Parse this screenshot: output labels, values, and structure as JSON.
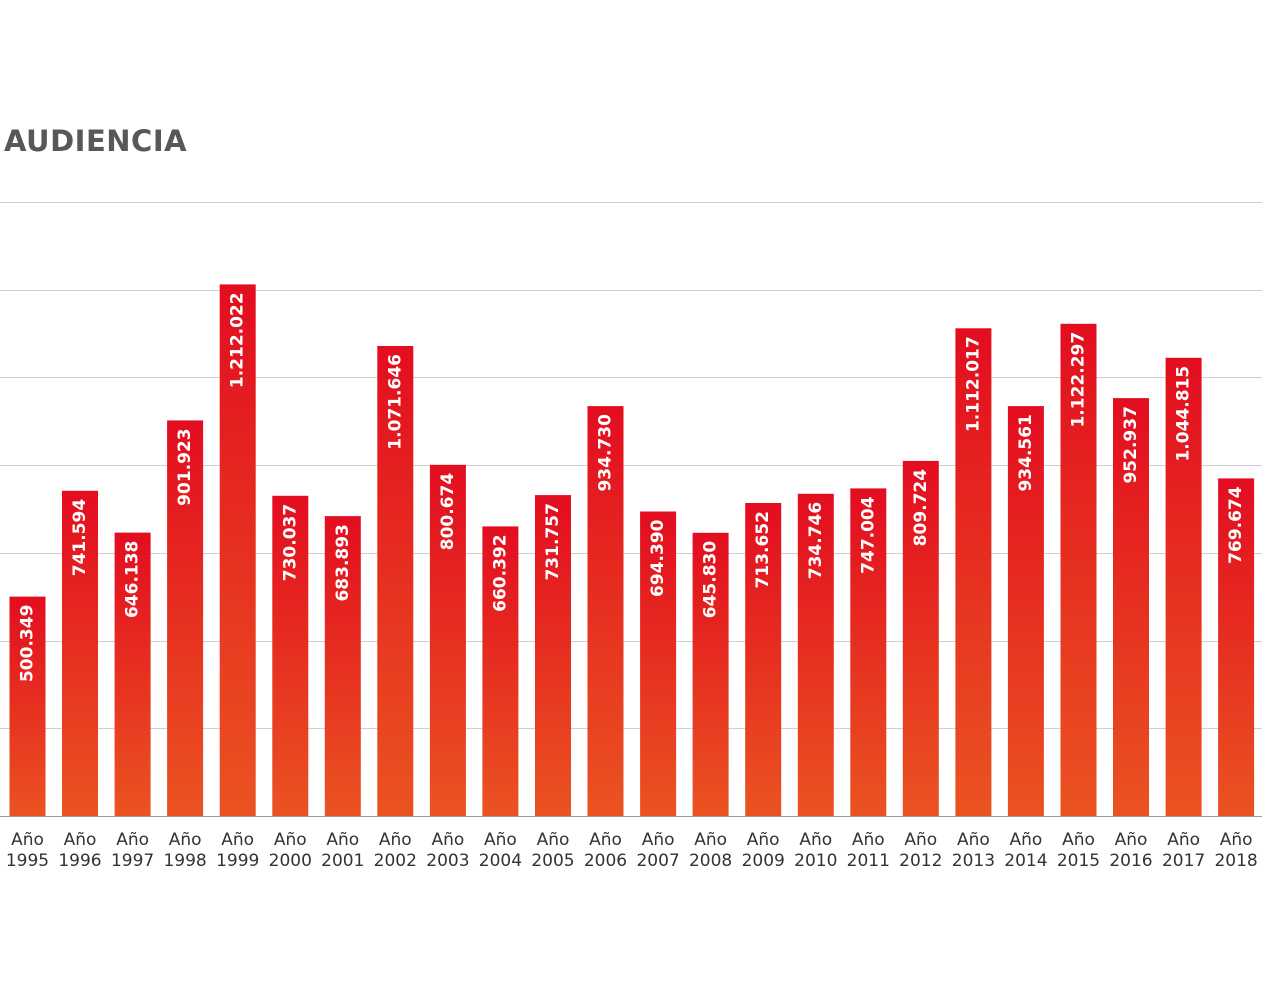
{
  "chart_data": {
    "type": "bar",
    "title": "AUDIENCIA",
    "xlabel": "",
    "ylabel": "",
    "grid": true,
    "ylim": [
      0,
      1400000
    ],
    "yticks": [
      0,
      200000,
      400000,
      600000,
      800000,
      1000000,
      1200000,
      1400000
    ],
    "categories": [
      [
        "Año",
        "1995"
      ],
      [
        "Año",
        "1996"
      ],
      [
        "Año",
        "1997"
      ],
      [
        "Año",
        "1998"
      ],
      [
        "Año",
        "1999"
      ],
      [
        "Año",
        "2000"
      ],
      [
        "Año",
        "2001"
      ],
      [
        "Año",
        "2002"
      ],
      [
        "Año",
        "2003"
      ],
      [
        "Año",
        "2004"
      ],
      [
        "Año",
        "2005"
      ],
      [
        "Año",
        "2006"
      ],
      [
        "Año",
        "2007"
      ],
      [
        "Año",
        "2008"
      ],
      [
        "Año",
        "2009"
      ],
      [
        "Año",
        "2010"
      ],
      [
        "Año",
        "2011"
      ],
      [
        "Año",
        "2012"
      ],
      [
        "Año",
        "2013"
      ],
      [
        "Año",
        "2014"
      ],
      [
        "Año",
        "2015"
      ],
      [
        "Año",
        "2016"
      ],
      [
        "Año",
        "2017"
      ],
      [
        "Año",
        "2018"
      ]
    ],
    "values": [
      500349,
      741594,
      646138,
      901923,
      1212022,
      730037,
      683893,
      1071646,
      800674,
      660392,
      731757,
      934730,
      694390,
      645830,
      713652,
      734746,
      747004,
      809724,
      1112017,
      934561,
      1122297,
      952937,
      1044815,
      769674
    ],
    "data_labels": [
      "500.349",
      "741.594",
      "646.138",
      "901.923",
      "1.212.022",
      "730.037",
      "683.893",
      "1.071.646",
      "800.674",
      "660.392",
      "731.757",
      "934.730",
      "694.390",
      "645.830",
      "713.652",
      "734.746",
      "747.004",
      "809.724",
      "1.112.017",
      "934.561",
      "1.122.297",
      "952.937",
      "1.044.815",
      "769.674"
    ],
    "colors": {
      "bar_top": "#e30d20",
      "bar_bottom": "#ea5321",
      "grid": "#cfcfcf",
      "baseline": "#9a9a9a",
      "title": "#58585a",
      "label": "#ffffff",
      "tick": "#333333"
    }
  }
}
